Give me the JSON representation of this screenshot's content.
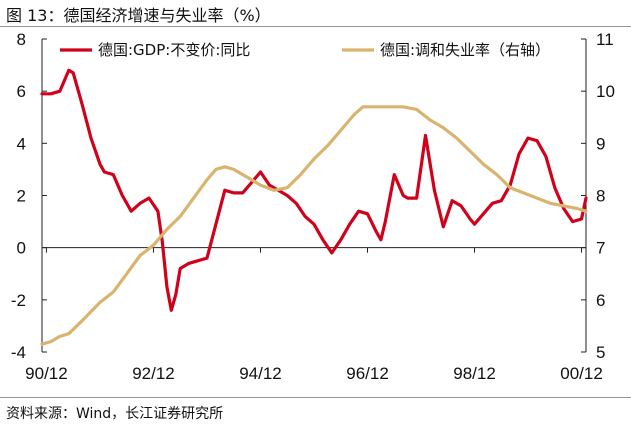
{
  "figure": {
    "title": "图 13：德国经济增速与失业率（%）",
    "source": "资料来源：Wind，长江证券研究所"
  },
  "chart_data": {
    "type": "line",
    "x_ticks": [
      "90/12",
      "92/12",
      "94/12",
      "96/12",
      "98/12",
      "00/12"
    ],
    "x_range": [
      "1990-11",
      "2001-01"
    ],
    "y_left": {
      "range": [
        -4,
        8
      ],
      "ticks": [
        -4,
        -2,
        0,
        2,
        4,
        6,
        8
      ]
    },
    "y_right": {
      "range": [
        5,
        11
      ],
      "ticks": [
        5,
        6,
        7,
        8,
        9,
        10,
        11
      ]
    },
    "legend_position": "top",
    "grid": false,
    "series": [
      {
        "name": "德国:GDP:不变价:同比",
        "axis": "left",
        "color": "#d0021b",
        "points": [
          [
            "1990-11",
            5.9
          ],
          [
            "1991-01",
            5.9
          ],
          [
            "1991-03",
            6.0
          ],
          [
            "1991-05",
            6.8
          ],
          [
            "1991-06",
            6.7
          ],
          [
            "1991-08",
            5.5
          ],
          [
            "1991-10",
            4.2
          ],
          [
            "1991-12",
            3.2
          ],
          [
            "1992-01",
            2.9
          ],
          [
            "1992-03",
            2.8
          ],
          [
            "1992-05",
            2.0
          ],
          [
            "1992-07",
            1.4
          ],
          [
            "1992-09",
            1.7
          ],
          [
            "1992-11",
            1.9
          ],
          [
            "1993-01",
            1.4
          ],
          [
            "1993-02",
            0.2
          ],
          [
            "1993-03",
            -1.5
          ],
          [
            "1993-04",
            -2.4
          ],
          [
            "1993-05",
            -1.8
          ],
          [
            "1993-06",
            -0.8
          ],
          [
            "1993-08",
            -0.6
          ],
          [
            "1993-10",
            -0.5
          ],
          [
            "1993-12",
            -0.4
          ],
          [
            "1994-02",
            0.9
          ],
          [
            "1994-04",
            2.2
          ],
          [
            "1994-06",
            2.1
          ],
          [
            "1994-08",
            2.1
          ],
          [
            "1994-10",
            2.5
          ],
          [
            "1994-12",
            2.9
          ],
          [
            "1995-02",
            2.4
          ],
          [
            "1995-04",
            2.2
          ],
          [
            "1995-06",
            2.0
          ],
          [
            "1995-08",
            1.7
          ],
          [
            "1995-10",
            1.2
          ],
          [
            "1995-12",
            0.9
          ],
          [
            "1996-02",
            0.3
          ],
          [
            "1996-04",
            -0.2
          ],
          [
            "1996-06",
            0.3
          ],
          [
            "1996-08",
            0.9
          ],
          [
            "1996-10",
            1.4
          ],
          [
            "1996-12",
            1.3
          ],
          [
            "1997-02",
            0.6
          ],
          [
            "1997-03",
            0.3
          ],
          [
            "1997-04",
            1.0
          ],
          [
            "1997-06",
            2.8
          ],
          [
            "1997-08",
            2.0
          ],
          [
            "1997-09",
            1.9
          ],
          [
            "1997-11",
            1.9
          ],
          [
            "1998-01",
            4.3
          ],
          [
            "1998-03",
            2.2
          ],
          [
            "1998-05",
            0.8
          ],
          [
            "1998-07",
            1.8
          ],
          [
            "1998-09",
            1.6
          ],
          [
            "1998-11",
            1.1
          ],
          [
            "1998-12",
            0.9
          ],
          [
            "1999-02",
            1.3
          ],
          [
            "1999-04",
            1.7
          ],
          [
            "1999-06",
            1.8
          ],
          [
            "1999-08",
            2.4
          ],
          [
            "1999-10",
            3.6
          ],
          [
            "1999-12",
            4.2
          ],
          [
            "2000-02",
            4.1
          ],
          [
            "2000-04",
            3.5
          ],
          [
            "2000-06",
            2.3
          ],
          [
            "2000-08",
            1.5
          ],
          [
            "2000-10",
            1.0
          ],
          [
            "2000-12",
            1.1
          ],
          [
            "2001-01",
            1.9
          ]
        ]
      },
      {
        "name": "德国:调和失业率（右轴）",
        "axis": "right",
        "color": "#d9b46e",
        "points": [
          [
            "1990-11",
            5.15
          ],
          [
            "1991-01",
            5.2
          ],
          [
            "1991-03",
            5.3
          ],
          [
            "1991-05",
            5.35
          ],
          [
            "1991-08",
            5.6
          ],
          [
            "1991-12",
            5.95
          ],
          [
            "1992-03",
            6.15
          ],
          [
            "1992-06",
            6.5
          ],
          [
            "1992-09",
            6.85
          ],
          [
            "1992-12",
            7.05
          ],
          [
            "1993-03",
            7.35
          ],
          [
            "1993-06",
            7.6
          ],
          [
            "1993-09",
            7.95
          ],
          [
            "1993-12",
            8.3
          ],
          [
            "1994-02",
            8.5
          ],
          [
            "1994-04",
            8.55
          ],
          [
            "1994-06",
            8.5
          ],
          [
            "1994-08",
            8.4
          ],
          [
            "1994-10",
            8.3
          ],
          [
            "1994-12",
            8.2
          ],
          [
            "1995-03",
            8.1
          ],
          [
            "1995-06",
            8.15
          ],
          [
            "1995-09",
            8.4
          ],
          [
            "1995-12",
            8.7
          ],
          [
            "1996-03",
            8.95
          ],
          [
            "1996-06",
            9.25
          ],
          [
            "1996-09",
            9.55
          ],
          [
            "1996-11",
            9.7
          ],
          [
            "1997-02",
            9.7
          ],
          [
            "1997-05",
            9.7
          ],
          [
            "1997-08",
            9.7
          ],
          [
            "1997-11",
            9.65
          ],
          [
            "1998-02",
            9.45
          ],
          [
            "1998-05",
            9.3
          ],
          [
            "1998-08",
            9.1
          ],
          [
            "1998-11",
            8.85
          ],
          [
            "1999-02",
            8.6
          ],
          [
            "1999-05",
            8.4
          ],
          [
            "1999-08",
            8.15
          ],
          [
            "1999-11",
            8.05
          ],
          [
            "2000-02",
            7.95
          ],
          [
            "2000-05",
            7.85
          ],
          [
            "2000-08",
            7.8
          ],
          [
            "2000-11",
            7.75
          ],
          [
            "2001-01",
            7.7
          ]
        ]
      }
    ]
  }
}
